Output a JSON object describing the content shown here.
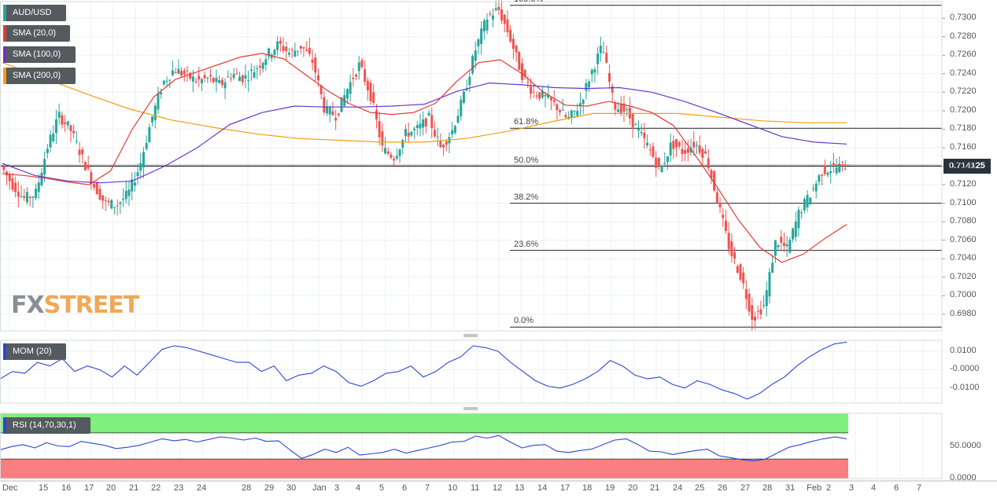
{
  "symbol": "AUD/USD",
  "indicators": {
    "sma20": "SMA (20,0)",
    "sma100": "SMA (100,0)",
    "sma200": "SMA (200,0)",
    "mom": "MOM (20)",
    "rsi": "RSI (14,70,30,1)"
  },
  "current_price": "0.714125",
  "watermark": {
    "fx": "FX",
    "street": "STREET"
  },
  "colors": {
    "bull": "#26a69a",
    "bear": "#ef5350",
    "sma20": "#e53935",
    "sma100": "#6a35c9",
    "sma200": "#f39c12",
    "mom": "#2d46d6",
    "rsi": "#2d46d6",
    "rsi_over": "#7ef07e",
    "rsi_under": "#f77f7f"
  },
  "chart_data": {
    "type": "candlestick",
    "price_axis": [
      "0.7300",
      "0.7280",
      "0.7260",
      "0.7240",
      "0.7220",
      "0.7200",
      "0.7180",
      "0.7160",
      "0.7140",
      "0.7120",
      "0.7100",
      "0.7080",
      "0.7060",
      "0.7040",
      "0.7020",
      "0.7000",
      "0.6980"
    ],
    "ylim": [
      0.6962,
      0.7318
    ],
    "x_ticks": [
      "Dec",
      "15",
      "16",
      "17",
      "20",
      "21",
      "22",
      "23",
      "24",
      "28",
      "29",
      "30",
      "Jan",
      "3",
      "4",
      "5",
      "6",
      "7",
      "10",
      "11",
      "12",
      "13",
      "14",
      "17",
      "18",
      "19",
      "20",
      "21",
      "24",
      "25",
      "26",
      "27",
      "28",
      "31",
      "Feb",
      "2",
      "3",
      "4",
      "6",
      "7"
    ],
    "fibonacci": [
      {
        "label": "100.0%",
        "value": 0.7314
      },
      {
        "label": "61.8%",
        "value": 0.7181
      },
      {
        "label": "50.0%",
        "value": 0.714
      },
      {
        "label": "38.2%",
        "value": 0.71
      },
      {
        "label": "23.6%",
        "value": 0.7049
      },
      {
        "label": "0.0%",
        "value": 0.6966
      }
    ],
    "price_path": [
      0.714,
      0.712,
      0.7105,
      0.711,
      0.716,
      0.7195,
      0.718,
      0.715,
      0.712,
      0.71,
      0.7098,
      0.711,
      0.714,
      0.719,
      0.723,
      0.7245,
      0.7238,
      0.7232,
      0.7235,
      0.7228,
      0.724,
      0.7235,
      0.7245,
      0.726,
      0.7272,
      0.7262,
      0.727,
      0.7252,
      0.72,
      0.7195,
      0.7225,
      0.725,
      0.7215,
      0.7158,
      0.715,
      0.7175,
      0.718,
      0.7192,
      0.716,
      0.7178,
      0.7215,
      0.7265,
      0.73,
      0.731,
      0.728,
      0.724,
      0.722,
      0.7215,
      0.7205,
      0.719,
      0.7205,
      0.724,
      0.727,
      0.7205,
      0.72,
      0.718,
      0.716,
      0.7135,
      0.7165,
      0.7155,
      0.7165,
      0.715,
      0.71,
      0.705,
      0.702,
      0.6975,
      0.699,
      0.706,
      0.705,
      0.709,
      0.711,
      0.7135,
      0.7138,
      0.7141
    ],
    "sma20": [
      0.7132,
      0.713,
      0.7127,
      0.7123,
      0.712,
      0.7135,
      0.718,
      0.7215,
      0.7234,
      0.7242,
      0.725,
      0.7258,
      0.7262,
      0.7256,
      0.7239,
      0.7222,
      0.7208,
      0.7198,
      0.7196,
      0.7198,
      0.7208,
      0.7232,
      0.7252,
      0.7255,
      0.724,
      0.722,
      0.7206,
      0.7205,
      0.721,
      0.7205,
      0.7198,
      0.7184,
      0.7152,
      0.7118,
      0.7082,
      0.7052,
      0.7036,
      0.7045,
      0.7062,
      0.7077
    ],
    "sma100": [
      0.7143,
      0.713,
      0.7124,
      0.7122,
      0.7124,
      0.714,
      0.716,
      0.7185,
      0.7198,
      0.7205,
      0.7204,
      0.7204,
      0.7205,
      0.7207,
      0.7221,
      0.723,
      0.7228,
      0.7225,
      0.7224,
      0.7225,
      0.722,
      0.721,
      0.7198,
      0.7185,
      0.7172,
      0.7166,
      0.7164
    ],
    "sma200": [
      0.7252,
      0.7235,
      0.7218,
      0.7202,
      0.719,
      0.7182,
      0.7175,
      0.717,
      0.7168,
      0.7166,
      0.7166,
      0.717,
      0.7178,
      0.7188,
      0.7197,
      0.7197,
      0.7197,
      0.7193,
      0.7189,
      0.7187,
      0.7187
    ],
    "mom": {
      "ticks": [
        "0.0100",
        "-0.0000",
        "-0.0100"
      ],
      "ylim": [
        -0.0182,
        0.016
      ],
      "values": [
        -0.005,
        -0.001,
        -0.002,
        0.004,
        0.002,
        0.006,
        -0.001,
        0.002,
        0.0,
        -0.004,
        0.002,
        -0.003,
        0.004,
        0.011,
        0.013,
        0.012,
        0.01,
        0.008,
        0.006,
        0.004,
        0.004,
        -0.001,
        0.002,
        -0.006,
        -0.003,
        -0.002,
        0.002,
        -0.001,
        -0.007,
        -0.009,
        -0.006,
        -0.002,
        -0.001,
        0.002,
        -0.004,
        -0.001,
        0.004,
        0.007,
        0.013,
        0.012,
        0.01,
        0.004,
        -0.001,
        -0.006,
        -0.009,
        -0.01,
        -0.008,
        -0.005,
        -0.001,
        0.005,
        0.002,
        -0.003,
        -0.005,
        -0.004,
        -0.008,
        -0.01,
        -0.006,
        -0.008,
        -0.011,
        -0.013,
        -0.016,
        -0.013,
        -0.008,
        -0.004,
        0.002,
        0.007,
        0.011,
        0.014,
        0.015
      ]
    },
    "rsi": {
      "ticks": [
        "50.0000",
        "0.0000"
      ],
      "ylim": [
        0,
        100
      ],
      "overbought": 70,
      "oversold": 30,
      "values": [
        44,
        49,
        52,
        47,
        55,
        50,
        49,
        57,
        54,
        51,
        46,
        48,
        51,
        56,
        61,
        58,
        60,
        56,
        60,
        64,
        62,
        59,
        62,
        57,
        58,
        44,
        31,
        37,
        45,
        40,
        48,
        36,
        38,
        40,
        45,
        39,
        43,
        47,
        51,
        56,
        57,
        65,
        62,
        66,
        56,
        47,
        51,
        52,
        42,
        40,
        43,
        45,
        52,
        59,
        61,
        52,
        42,
        41,
        37,
        40,
        43,
        45,
        35,
        32,
        29,
        27,
        30,
        39,
        48,
        52,
        57,
        61,
        64,
        61
      ]
    }
  }
}
